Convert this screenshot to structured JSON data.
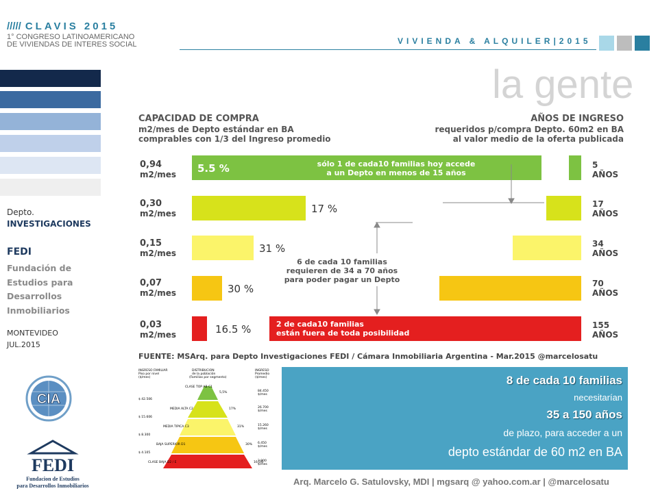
{
  "header": {
    "slashes": "/////",
    "brand": "CLAVIS 2015",
    "congress_line1": "1° CONGRESO LATINOAMERICANO",
    "congress_line2": "DE VIVIENDAS DE INTERES SOCIAL",
    "tagline": "VIVIENDA & ALQUILER|2015",
    "squares": [
      "#a9d8e8",
      "#bdbdbd",
      "#2a7fa0"
    ]
  },
  "title": "la gente",
  "sidebar": {
    "stripes": [
      "#13294b",
      "#3b6aa0",
      "#94b3d8",
      "#bfd0ea",
      "#dde6f3",
      "#efefef"
    ],
    "dept_line1": "Depto.",
    "dept_line2": "INVESTIGACIONES",
    "org_short": "FEDI",
    "org_long_1": "Fundación de",
    "org_long_2": "Estudios para",
    "org_long_3": "Desarrollos",
    "org_long_4": "Inmobiliarios",
    "city": "MONTEVIDEO",
    "date": "JUL.2015"
  },
  "logos": {
    "cia": "CIA",
    "fedi": "FEDI",
    "fedi_sub_1": "Fundacion de Estudios",
    "fedi_sub_2": "para Desarrollos Inmobiliarios"
  },
  "chart": {
    "left_title": "CAPACIDAD DE COMPRA",
    "left_sub1": "m2/mes de Depto estándar en BA",
    "left_sub2": "comprables con 1/3 del Ingreso promedio",
    "right_title": "AÑOS DE INGRESO",
    "right_sub1": "requeridos p/compra Depto. 60m2 en BA",
    "right_sub2": "al valor medio de la oferta publicada",
    "unit": "m2/mes",
    "years_unit": "AÑOS",
    "rows": [
      {
        "m2": "0,94",
        "pct": "5.5 %",
        "years": "5",
        "color": "#7dc242"
      },
      {
        "m2": "0,30",
        "pct": "17 %",
        "years": "17",
        "color": "#d7e21b"
      },
      {
        "m2": "0,15",
        "pct": "31 %",
        "years": "34",
        "color": "#fbf46a"
      },
      {
        "m2": "0,07",
        "pct": "30 %",
        "years": "70",
        "color": "#f6c613"
      },
      {
        "m2": "0,03",
        "pct": "16.5 %",
        "years": "155",
        "color": "#e41f1f"
      }
    ],
    "note_top_1": "sólo 1 de cada10 familias hoy accede",
    "note_top_2": "a un Depto  en menos de 15 años",
    "note_mid_1": "6 de cada 10 familias",
    "note_mid_2": "requieren de 34 a 70 años",
    "note_mid_3": "para poder pagar un Depto",
    "note_bot_1": "2 de cada10 familias",
    "note_bot_2": "están fuera de toda posibilidad",
    "source": "FUENTE: MSArq. para Depto Investigaciones FEDI / Cámara Inmobiliaria Argentina - Mar.2015  @marcelosatu"
  },
  "pyramid": {
    "h1": "INGRESO FAMILIAR",
    "h1b": "Piso por nivel",
    "h1c": "($/mes)",
    "h2": "DISTRIBUCION",
    "h2b": "de la población",
    "h2c": "(Familias por segmento)",
    "h3": "INGRESO",
    "h3b": "Promedio",
    "h3c": "($/mes)",
    "levels": [
      {
        "floor": "",
        "label": "CLASE TOP AB C1",
        "pct": "5,5%",
        "avg": "84.450",
        "color": "#7dc242"
      },
      {
        "floor": "$ 42.506",
        "label": "MEDIA ALTA C2",
        "pct": "17%",
        "avg": "26.700",
        "color": "#d7e21b"
      },
      {
        "floor": "$ 15.606",
        "label": "MEDIA TIPICA C3",
        "pct": "31%",
        "avg": "15.260",
        "color": "#fbf46a"
      },
      {
        "floor": "$ 8.300",
        "label": "BAJA SUPERIOR D1",
        "pct": "30%",
        "avg": "6.450",
        "color": "#f6c613"
      },
      {
        "floor": "$ 4.105",
        "label": "CLASE BAJA D2 / E",
        "pct": "16,5%",
        "avg": "2.900",
        "color": "#e41f1f"
      }
    ],
    "avg_unit": "$/mes"
  },
  "info": {
    "line1": "8 de cada 10 familias",
    "line2": "necesitarían",
    "line3": "35  a  150  años",
    "line4": "de plazo, para acceder a un",
    "line5": "depto estándar de 60 m2 en BA"
  },
  "footer": "Arq. Marcelo G. Satulovsky, MDI  |  mgsarq @ yahoo.com.ar  |  @marcelosatu"
}
